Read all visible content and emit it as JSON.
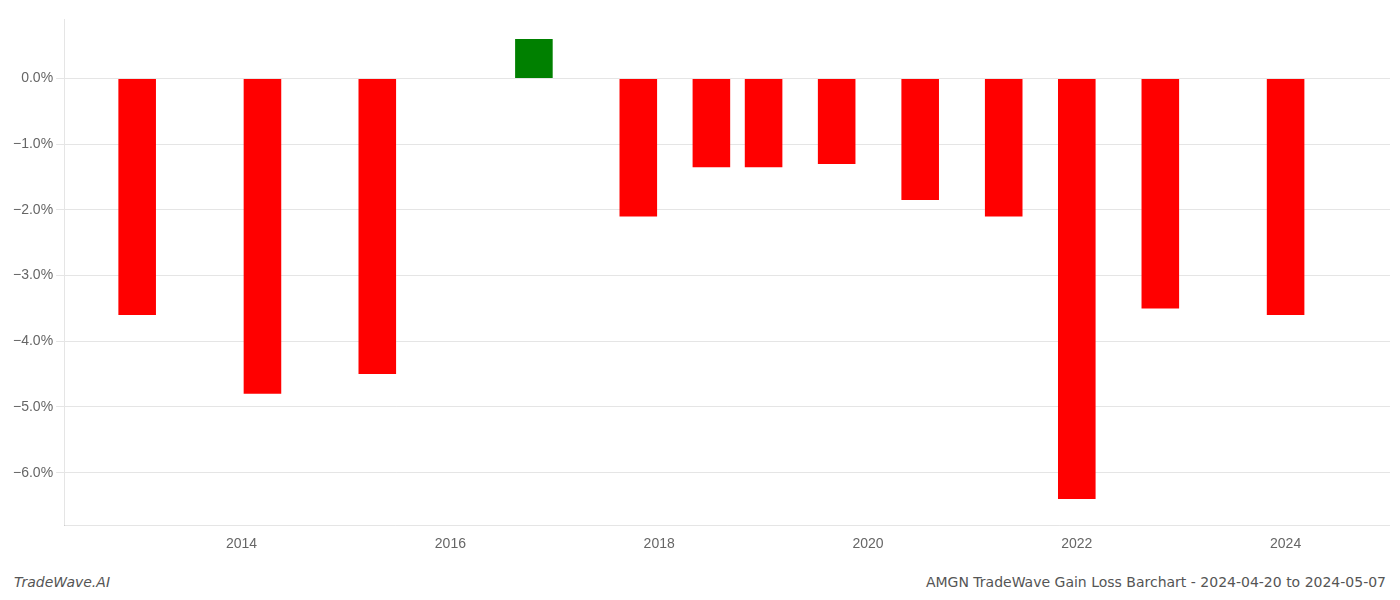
{
  "chart_data": {
    "type": "bar",
    "x": [
      2013.0,
      2014.2,
      2015.3,
      2016.8,
      2017.8,
      2018.5,
      2019.0,
      2019.7,
      2020.5,
      2021.3,
      2022.0,
      2022.8,
      2024.0
    ],
    "values": [
      -3.6,
      -4.8,
      -4.5,
      0.6,
      -2.1,
      -1.35,
      -1.35,
      -1.3,
      -1.85,
      -2.1,
      -6.4,
      -3.5,
      -3.6
    ],
    "colors": [
      "#ff0000",
      "#ff0000",
      "#ff0000",
      "#008000",
      "#ff0000",
      "#ff0000",
      "#ff0000",
      "#ff0000",
      "#ff0000",
      "#ff0000",
      "#ff0000",
      "#ff0000",
      "#ff0000"
    ],
    "xlim": [
      2012.3,
      2025.0
    ],
    "xticks": [
      2014,
      2016,
      2018,
      2020,
      2022,
      2024
    ],
    "ylim": [
      -6.8,
      0.9
    ],
    "yticks": [
      {
        "value": 0.0,
        "label": "0.0%"
      },
      {
        "value": -1.0,
        "label": "−1.0%"
      },
      {
        "value": -2.0,
        "label": "−2.0%"
      },
      {
        "value": -3.0,
        "label": "−3.0%"
      },
      {
        "value": -4.0,
        "label": "−4.0%"
      },
      {
        "value": -5.0,
        "label": "−5.0%"
      },
      {
        "value": -6.0,
        "label": "−6.0%"
      }
    ],
    "grid": "y",
    "annotations": [
      "TradeWave.AI",
      "AMGN TradeWave Gain Loss Barchart - 2024-04-20 to 2024-05-07"
    ]
  }
}
